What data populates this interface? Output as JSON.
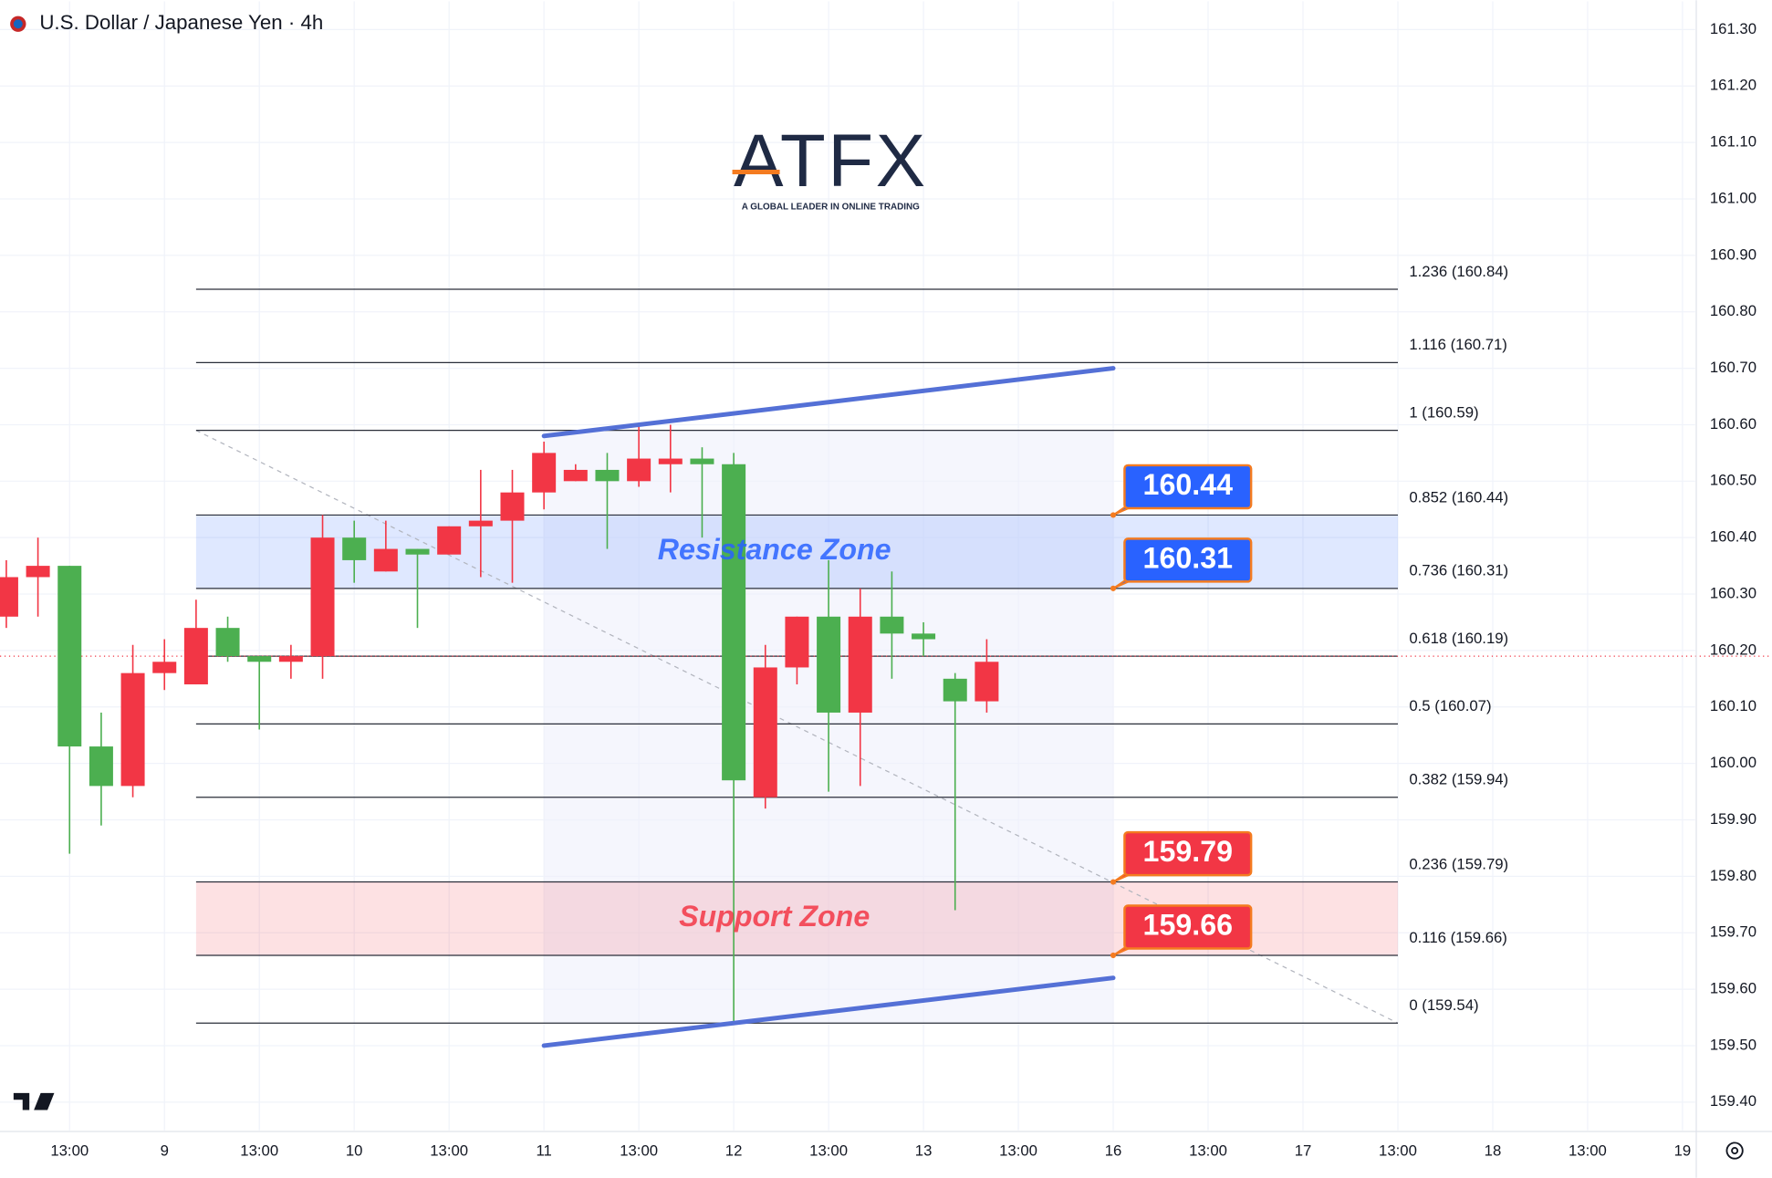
{
  "chart_data": {
    "type": "candlestick",
    "title": "U.S. Dollar / Japanese Yen · 4h",
    "logo": {
      "name": "ATFX",
      "tagline": "A GLOBAL LEADER IN ONLINE TRADING"
    },
    "x": [
      0,
      1,
      2,
      3,
      4,
      5,
      6,
      7,
      8,
      9,
      10,
      11,
      12,
      13,
      14,
      15,
      16,
      17,
      18,
      19,
      20,
      21,
      22,
      23,
      24,
      25,
      26,
      27,
      28,
      29,
      30,
      31
    ],
    "open": [
      160.33,
      160.35,
      160.03,
      159.96,
      160.16,
      160.18,
      160.24,
      160.19,
      160.18,
      160.19,
      160.4,
      160.36,
      160.38,
      160.37,
      160.42,
      160.43,
      160.48,
      160.55,
      160.52,
      160.5,
      160.54,
      160.54,
      160.53,
      159.97,
      160.17,
      160.26,
      160.09,
      160.26,
      160.23,
      160.22,
      160.11,
      160.18
    ],
    "high": [
      160.36,
      160.4,
      160.35,
      160.09,
      160.21,
      160.22,
      160.29,
      160.26,
      160.19,
      160.21,
      160.44,
      160.43,
      160.43,
      160.38,
      160.42,
      160.52,
      160.52,
      160.57,
      160.53,
      160.55,
      160.6,
      160.6,
      160.56,
      160.55,
      160.21,
      160.26,
      160.36,
      160.31,
      160.34,
      160.25,
      160.16,
      160.22
    ],
    "low": [
      160.24,
      160.26,
      159.84,
      159.89,
      159.94,
      160.13,
      160.14,
      160.18,
      160.06,
      160.15,
      160.15,
      160.32,
      160.34,
      160.24,
      160.37,
      160.33,
      160.32,
      160.45,
      160.5,
      160.38,
      160.49,
      160.48,
      160.4,
      159.54,
      159.92,
      160.14,
      159.95,
      159.96,
      160.15,
      160.19,
      159.74,
      160.09
    ],
    "close": [
      160.26,
      160.33,
      160.35,
      160.03,
      159.96,
      160.16,
      160.14,
      160.24,
      160.19,
      160.18,
      160.19,
      160.4,
      160.34,
      160.38,
      160.37,
      160.42,
      160.43,
      160.48,
      160.5,
      160.52,
      160.5,
      160.53,
      160.54,
      160.53,
      159.94,
      160.17,
      160.26,
      160.09,
      160.26,
      160.23,
      160.15,
      160.11
    ],
    "up_color": "#4caf50",
    "down_color": "#f23645",
    "xlim": [
      -0.2,
      53.4
    ],
    "xticks": [
      {
        "value": 2,
        "label": "13:00"
      },
      {
        "value": 5,
        "label": "9"
      },
      {
        "value": 8,
        "label": "13:00"
      },
      {
        "value": 11,
        "label": "10"
      },
      {
        "value": 14,
        "label": "13:00"
      },
      {
        "value": 17,
        "label": "11"
      },
      {
        "value": 20,
        "label": "13:00"
      },
      {
        "value": 23,
        "label": "12"
      },
      {
        "value": 26,
        "label": "13:00"
      },
      {
        "value": 29,
        "label": "13"
      },
      {
        "value": 32,
        "label": "13:00"
      },
      {
        "value": 35,
        "label": "16"
      },
      {
        "value": 38,
        "label": "13:00"
      },
      {
        "value": 41,
        "label": "17"
      },
      {
        "value": 44,
        "label": "13:00"
      },
      {
        "value": 47,
        "label": "18"
      },
      {
        "value": 50,
        "label": "13:00"
      },
      {
        "value": 53,
        "label": "19"
      }
    ],
    "ylim": [
      159.35,
      161.35
    ],
    "yticks": [
      {
        "value": 161.3,
        "label": "161.30"
      },
      {
        "value": 161.2,
        "label": "161.20"
      },
      {
        "value": 161.1,
        "label": "161.10"
      },
      {
        "value": 161.0,
        "label": "161.00"
      },
      {
        "value": 160.9,
        "label": "160.90"
      },
      {
        "value": 160.8,
        "label": "160.80"
      },
      {
        "value": 160.7,
        "label": "160.70"
      },
      {
        "value": 160.6,
        "label": "160.60"
      },
      {
        "value": 160.5,
        "label": "160.50"
      },
      {
        "value": 160.4,
        "label": "160.40"
      },
      {
        "value": 160.3,
        "label": "160.30"
      },
      {
        "value": 160.2,
        "label": "160.20"
      },
      {
        "value": 160.1,
        "label": "160.10"
      },
      {
        "value": 160.0,
        "label": "160.00"
      },
      {
        "value": 159.9,
        "label": "159.90"
      },
      {
        "value": 159.8,
        "label": "159.80"
      },
      {
        "value": 159.7,
        "label": "159.70"
      },
      {
        "value": 159.6,
        "label": "159.60"
      },
      {
        "value": 159.5,
        "label": "159.50"
      },
      {
        "value": 159.4,
        "label": "159.40"
      }
    ],
    "grid": true,
    "price_line": 160.19,
    "fib_x": [
      6,
      44
    ],
    "fib_levels": [
      {
        "value": 160.84,
        "label": "1.236 (160.84)"
      },
      {
        "value": 160.71,
        "label": "1.116 (160.71)"
      },
      {
        "value": 160.59,
        "label": "1 (160.59)"
      },
      {
        "value": 160.44,
        "label": "0.852 (160.44)"
      },
      {
        "value": 160.31,
        "label": "0.736 (160.31)"
      },
      {
        "value": 160.19,
        "label": "0.618 (160.19)"
      },
      {
        "value": 160.07,
        "label": "0.5 (160.07)"
      },
      {
        "value": 159.94,
        "label": "0.382 (159.94)"
      },
      {
        "value": 159.79,
        "label": "0.236 (159.79)"
      },
      {
        "value": 159.66,
        "label": "0.116 (159.66)"
      },
      {
        "value": 159.54,
        "label": "0 (159.54)"
      }
    ],
    "fib_trend": {
      "x": [
        6,
        44
      ],
      "values": [
        160.59,
        159.54
      ]
    },
    "zones": [
      {
        "label": "Resistance Zone",
        "range": [
          160.31,
          160.44
        ],
        "color": "#2962ff"
      },
      {
        "label": "Support Zone",
        "range": [
          159.66,
          159.79
        ],
        "color": "#f23645"
      }
    ],
    "trendlines": [
      {
        "x": [
          17,
          35
        ],
        "values": [
          160.58,
          160.7
        ],
        "color": "#5470d6"
      },
      {
        "x": [
          17,
          35
        ],
        "values": [
          159.5,
          159.62
        ],
        "color": "#5470d6"
      }
    ],
    "price_labels": [
      {
        "x": 35,
        "value": 160.44,
        "color": "#2962ff"
      },
      {
        "x": 35,
        "value": 160.31,
        "color": "#2962ff"
      },
      {
        "x": 35,
        "value": 159.79,
        "color": "#f23645"
      },
      {
        "x": 35,
        "value": 159.66,
        "color": "#f23645"
      }
    ]
  }
}
